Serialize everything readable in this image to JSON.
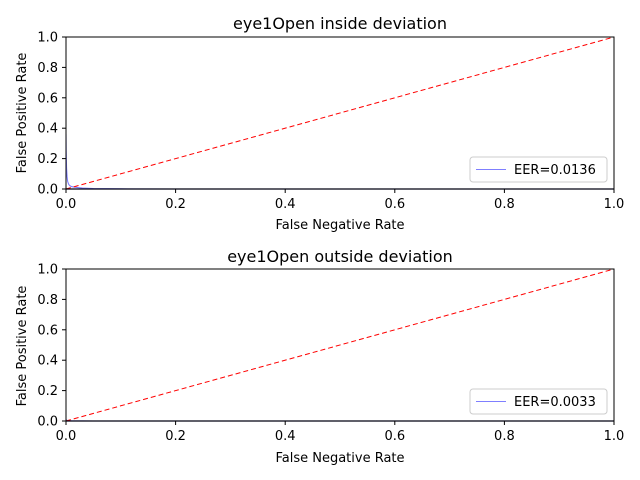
{
  "chart_data": [
    {
      "type": "line",
      "title": "eye1Open inside deviation",
      "xlabel": "False Negative Rate",
      "ylabel": "False Positive Rate",
      "xlim": [
        0,
        1
      ],
      "ylim": [
        0,
        1
      ],
      "xticks": [
        "0.0",
        "0.2",
        "0.4",
        "0.6",
        "0.8",
        "1.0"
      ],
      "yticks": [
        "0.0",
        "0.2",
        "0.4",
        "0.6",
        "0.8",
        "1.0"
      ],
      "legend_position": "lower-right",
      "series": [
        {
          "name": "EER=0.0136",
          "color": "#7f7fff",
          "style": "solid",
          "x": [
            0,
            0.0003,
            0.001,
            0.002,
            0.003,
            0.005,
            0.007,
            0.01,
            0.0136,
            0.02,
            0.03,
            0.05,
            0.1,
            0.2,
            0.4,
            0.6,
            0.8,
            1.0
          ],
          "y": [
            0.36,
            0.25,
            0.14,
            0.08,
            0.05,
            0.03,
            0.022,
            0.016,
            0.0136,
            0.01,
            0.006,
            0.003,
            0.001,
            0,
            0,
            0,
            0,
            0
          ]
        },
        {
          "name": "diagonal",
          "color": "#ff0000",
          "style": "dashed",
          "x": [
            0,
            1
          ],
          "y": [
            0,
            1
          ]
        }
      ]
    },
    {
      "type": "line",
      "title": "eye1Open outside deviation",
      "xlabel": "False Negative Rate",
      "ylabel": "False Positive Rate",
      "xlim": [
        0,
        1
      ],
      "ylim": [
        0,
        1
      ],
      "xticks": [
        "0.0",
        "0.2",
        "0.4",
        "0.6",
        "0.8",
        "1.0"
      ],
      "yticks": [
        "0.0",
        "0.2",
        "0.4",
        "0.6",
        "0.8",
        "1.0"
      ],
      "legend_position": "lower-right",
      "series": [
        {
          "name": "EER=0.0033",
          "color": "#7f7fff",
          "style": "solid",
          "x": [
            0,
            0.001,
            0.002,
            0.0033,
            0.005,
            0.01,
            0.05,
            0.2,
            0.5,
            1.0
          ],
          "y": [
            0.01,
            0.006,
            0.004,
            0.0033,
            0.002,
            0.001,
            0,
            0,
            0,
            0
          ]
        },
        {
          "name": "diagonal",
          "color": "#ff0000",
          "style": "dashed",
          "x": [
            0,
            1
          ],
          "y": [
            0,
            1
          ]
        }
      ]
    }
  ]
}
